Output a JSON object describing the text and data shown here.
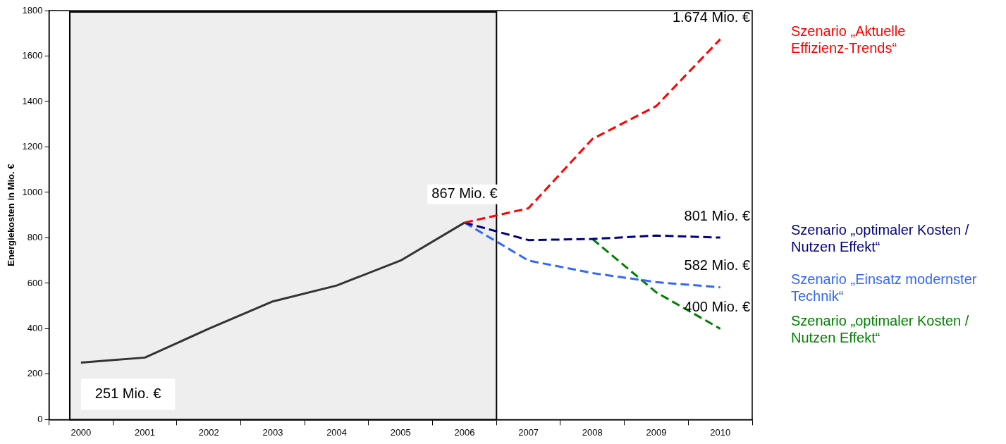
{
  "chart_data": {
    "type": "line",
    "ylabel": "Energiekosten in Mio. €",
    "categories": [
      "2000",
      "2001",
      "2002",
      "2003",
      "2004",
      "2005",
      "2006",
      "2007",
      "2008",
      "2009",
      "2010"
    ],
    "ylim": [
      0,
      1800
    ],
    "yticks": [
      0,
      200,
      400,
      600,
      800,
      1000,
      1200,
      1400,
      1600,
      1800
    ],
    "grid": false,
    "legend": "right",
    "marker": "none",
    "bands": [
      {
        "axis": "x",
        "from": "2000",
        "to": "2006",
        "color": "#eeeeee"
      }
    ],
    "series": [
      {
        "color": "#333333",
        "line_style": "solid",
        "values": [
          251,
          273,
          400,
          520,
          590,
          700,
          867,
          null,
          null,
          null,
          null
        ],
        "value_labels": [
          "251 Mio. €",
          null,
          null,
          null,
          null,
          null,
          "867 Mio. €",
          null,
          null,
          null,
          null
        ]
      },
      {
        "name": "Szenario „Aktuelle Effizienz-Trends“",
        "color": "#ff0000",
        "line_style": "dashed",
        "values": [
          null,
          null,
          null,
          null,
          null,
          null,
          867,
          930,
          1235,
          1380,
          1674
        ],
        "value_labels": [
          null,
          null,
          null,
          null,
          null,
          null,
          null,
          null,
          null,
          null,
          "1.674 Mio. €"
        ]
      },
      {
        "name": "Szenario „optimaler Kosten / Nutzen Effekt“",
        "color": "#000080",
        "line_style": "dashed",
        "values": [
          null,
          null,
          null,
          null,
          null,
          null,
          867,
          790,
          795,
          810,
          801
        ],
        "value_labels": [
          null,
          null,
          null,
          null,
          null,
          null,
          null,
          null,
          null,
          null,
          "801 Mio. €"
        ]
      },
      {
        "name": "Szenario „Einsatz modernster Technik“",
        "color": "#3366ff",
        "line_style": "dashed",
        "values": [
          null,
          null,
          null,
          null,
          null,
          null,
          867,
          700,
          645,
          605,
          582
        ],
        "value_labels": [
          null,
          null,
          null,
          null,
          null,
          null,
          null,
          null,
          null,
          null,
          "582 Mio. €"
        ]
      },
      {
        "name": "Szenario „optimaler Kosten / Nutzen Effekt“",
        "color": "#008000",
        "line_style": "dashed",
        "values": [
          null,
          null,
          null,
          null,
          null,
          null,
          null,
          null,
          795,
          560,
          400
        ],
        "value_labels": [
          null,
          null,
          null,
          null,
          null,
          null,
          null,
          null,
          null,
          null,
          "400 Mio. €"
        ]
      }
    ]
  }
}
